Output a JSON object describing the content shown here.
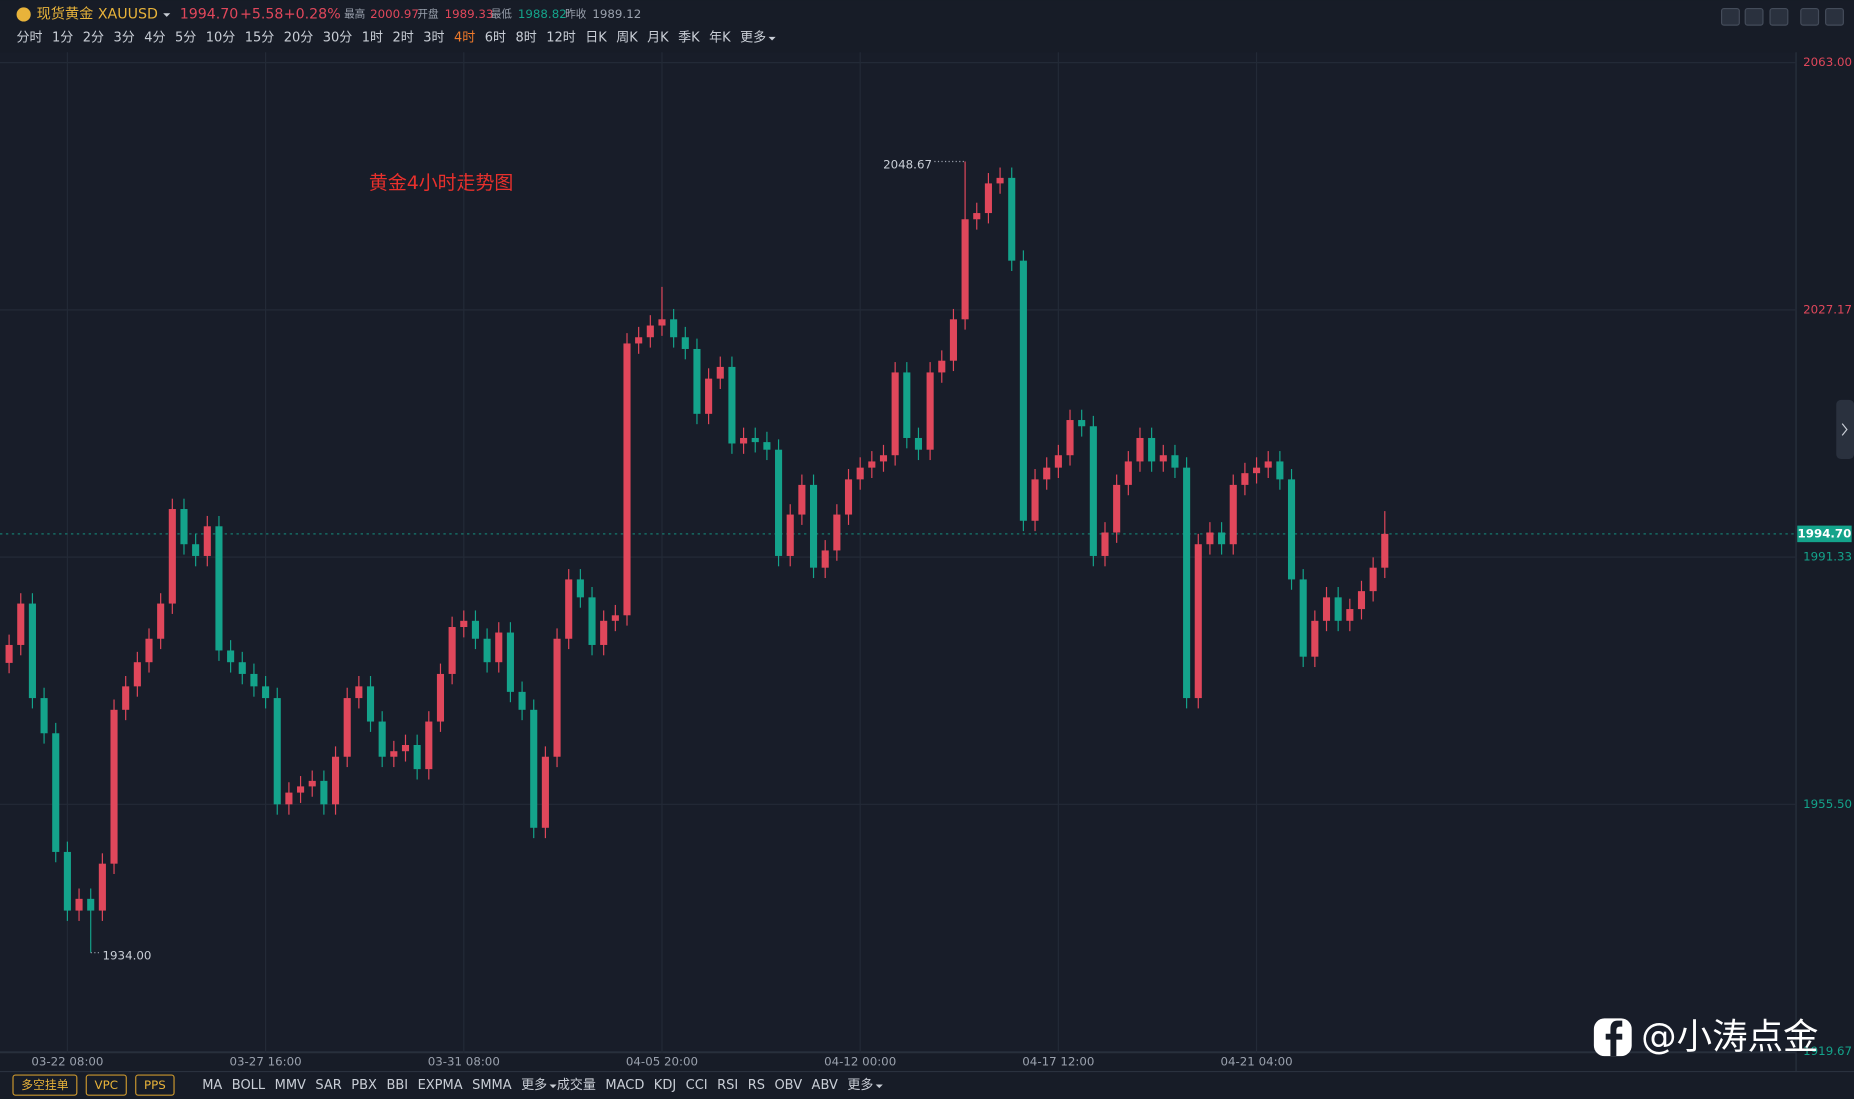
{
  "header": {
    "name": "现货黄金 XAUUSD",
    "change": "+5.58",
    "change_pct": "+0.28%",
    "high_label": "最高",
    "high": "2000.97",
    "open_label": "开盘",
    "open": "1989.33",
    "low_label": "最低",
    "low": "1988.82",
    "prev_label": "昨收",
    "prev": "1989.12"
  },
  "toolbar": {
    "timeframes": [
      "分时",
      "1分",
      "2分",
      "3分",
      "4分",
      "5分",
      "10分",
      "15分",
      "20分",
      "30分",
      "1时",
      "2时",
      "3时",
      "4时",
      "6时",
      "8时",
      "12时",
      "日K",
      "周K",
      "月K",
      "季K",
      "年K",
      "更多"
    ],
    "active": 13
  },
  "bottom": {
    "buttons": [
      "多空挂单",
      "VPC",
      "PPS"
    ],
    "main_indicators": [
      "MA",
      "BOLL",
      "MMV",
      "SAR",
      "PBX",
      "BBI",
      "EXPMA",
      "SMMA",
      "更多"
    ],
    "sub_indicators": [
      "成交量",
      "MACD",
      "KDJ",
      "CCI",
      "RSI",
      "RS",
      "OBV",
      "ABV",
      "更多"
    ]
  },
  "watermark": "@小涛点金",
  "chart_data": {
    "type": "candlestick",
    "annotation": "黄金4小时走势图",
    "up_color": "#e0475b",
    "down_color": "#14a38b",
    "grid": true,
    "last_price": {
      "value": 1994.7,
      "label": "1994.70"
    },
    "low_label": "1934.00",
    "high_index": 82,
    "low_index": 7,
    "ylim": [
      1919,
      2064.5
    ],
    "yticks": [
      {
        "value": 2063,
        "label": "2063.00"
      },
      2027.17,
      1991.33,
      {
        "value": 1955.5,
        "label": "1955.50"
      },
      1919.67
    ],
    "categories": [
      null,
      null,
      null,
      null,
      null,
      "03-22 08:00",
      null,
      null,
      null,
      null,
      null,
      null,
      null,
      null,
      null,
      null,
      null,
      null,
      null,
      null,
      null,
      null,
      "03-27 16:00",
      null,
      null,
      null,
      null,
      null,
      null,
      null,
      null,
      null,
      null,
      null,
      null,
      null,
      null,
      null,
      null,
      "03-31 08:00",
      null,
      null,
      null,
      null,
      null,
      null,
      null,
      null,
      null,
      null,
      null,
      null,
      null,
      null,
      null,
      null,
      "04-05 20:00",
      null,
      null,
      null,
      null,
      null,
      null,
      null,
      null,
      null,
      null,
      null,
      null,
      null,
      null,
      null,
      null,
      "04-12 00:00",
      null,
      null,
      null,
      null,
      null,
      null,
      null,
      null,
      null,
      null,
      null,
      null,
      null,
      null,
      null,
      null,
      "04-17 12:00",
      null,
      null,
      null,
      null,
      null,
      null,
      null,
      null,
      null,
      null,
      null,
      null,
      null,
      null,
      null,
      null,
      "04-21 04:00",
      null,
      null,
      null,
      null,
      null,
      null,
      null,
      null,
      null,
      null,
      null
    ],
    "candles": [
      [
        1976.0,
        1980.1,
        1974.5,
        1978.6
      ],
      [
        1978.6,
        1986.1,
        1977.1,
        1984.6
      ],
      [
        1984.6,
        1986.1,
        1969.4,
        1970.9
      ],
      [
        1970.9,
        1972.4,
        1964.3,
        1965.8
      ],
      [
        1965.8,
        1967.3,
        1947.1,
        1948.6
      ],
      [
        1948.6,
        1950.1,
        1938.6,
        1940.1
      ],
      [
        1940.1,
        1943.3,
        1938.6,
        1941.8
      ],
      [
        1941.8,
        1943.3,
        1934.0,
        1940.1
      ],
      [
        1940.1,
        1948.4,
        1938.6,
        1946.9
      ],
      [
        1946.9,
        1970.7,
        1945.4,
        1969.2
      ],
      [
        1969.2,
        1974.1,
        1967.7,
        1972.6
      ],
      [
        1972.6,
        1977.6,
        1971.1,
        1976.1
      ],
      [
        1976.1,
        1981.0,
        1974.6,
        1979.5
      ],
      [
        1979.5,
        1986.1,
        1978.0,
        1984.6
      ],
      [
        1984.6,
        1999.8,
        1983.1,
        1998.3
      ],
      [
        1998.3,
        1999.8,
        1991.7,
        1993.2
      ],
      [
        1993.2,
        1994.7,
        1990.0,
        1991.5
      ],
      [
        1991.5,
        1997.3,
        1990.0,
        1995.8
      ],
      [
        1995.8,
        1997.3,
        1976.3,
        1977.8
      ],
      [
        1977.8,
        1979.3,
        1974.6,
        1976.1
      ],
      [
        1976.1,
        1977.6,
        1972.9,
        1974.4
      ],
      [
        1974.4,
        1975.9,
        1971.1,
        1972.6
      ],
      [
        1972.6,
        1974.1,
        1969.4,
        1970.9
      ],
      [
        1970.9,
        1972.4,
        1954.0,
        1955.5
      ],
      [
        1955.5,
        1958.7,
        1954.0,
        1957.2
      ],
      [
        1957.2,
        1959.6,
        1955.7,
        1958.1
      ],
      [
        1958.1,
        1960.4,
        1956.6,
        1958.9
      ],
      [
        1958.9,
        1960.4,
        1954.0,
        1955.5
      ],
      [
        1955.5,
        1963.9,
        1954.0,
        1962.4
      ],
      [
        1962.4,
        1972.4,
        1960.9,
        1970.9
      ],
      [
        1970.9,
        1974.1,
        1969.4,
        1972.6
      ],
      [
        1972.6,
        1974.1,
        1966.0,
        1967.5
      ],
      [
        1967.5,
        1969.0,
        1960.9,
        1962.4
      ],
      [
        1962.4,
        1964.7,
        1960.9,
        1963.2
      ],
      [
        1963.2,
        1965.6,
        1961.7,
        1964.1
      ],
      [
        1964.1,
        1965.6,
        1959.1,
        1960.6
      ],
      [
        1960.6,
        1969.0,
        1959.1,
        1967.5
      ],
      [
        1967.5,
        1975.9,
        1966.0,
        1974.4
      ],
      [
        1974.4,
        1982.7,
        1972.9,
        1981.2
      ],
      [
        1981.2,
        1983.6,
        1979.7,
        1982.1
      ],
      [
        1982.1,
        1983.6,
        1978.0,
        1979.5
      ],
      [
        1979.5,
        1981.0,
        1974.6,
        1976.1
      ],
      [
        1976.1,
        1981.9,
        1974.6,
        1980.4
      ],
      [
        1980.4,
        1981.9,
        1970.3,
        1971.8
      ],
      [
        1971.8,
        1973.3,
        1967.7,
        1969.2
      ],
      [
        1969.2,
        1970.7,
        1950.6,
        1952.1
      ],
      [
        1952.1,
        1963.9,
        1950.6,
        1962.4
      ],
      [
        1962.4,
        1981.0,
        1960.9,
        1979.5
      ],
      [
        1979.5,
        1989.6,
        1978.0,
        1988.1
      ],
      [
        1988.1,
        1989.6,
        1984.0,
        1985.5
      ],
      [
        1985.5,
        1987.0,
        1977.1,
        1978.6
      ],
      [
        1978.6,
        1983.6,
        1977.1,
        1982.1
      ],
      [
        1982.1,
        1984.4,
        1980.6,
        1982.9
      ],
      [
        1982.9,
        2023.8,
        1981.4,
        2022.3
      ],
      [
        2022.3,
        2024.7,
        2020.8,
        2023.2
      ],
      [
        2023.2,
        2026.4,
        2021.7,
        2024.9
      ],
      [
        2024.9,
        2030.5,
        2023.4,
        2025.8
      ],
      [
        2025.8,
        2027.3,
        2021.7,
        2023.2
      ],
      [
        2023.2,
        2024.7,
        2020.0,
        2021.5
      ],
      [
        2021.5,
        2023.0,
        2010.6,
        2012.1
      ],
      [
        2012.1,
        2018.7,
        2010.6,
        2017.2
      ],
      [
        2017.2,
        2020.4,
        2015.7,
        2018.9
      ],
      [
        2018.9,
        2020.4,
        2006.3,
        2007.8
      ],
      [
        2007.8,
        2010.1,
        2006.3,
        2008.6
      ],
      [
        2008.6,
        2010.1,
        2006.5,
        2008.0
      ],
      [
        2008.0,
        2009.5,
        2005.4,
        2006.9
      ],
      [
        2006.9,
        2008.4,
        1990.0,
        1991.5
      ],
      [
        1991.5,
        1999.0,
        1990.0,
        1997.5
      ],
      [
        1997.5,
        2003.3,
        1996.0,
        2001.8
      ],
      [
        2001.8,
        2003.3,
        1988.3,
        1989.8
      ],
      [
        1989.8,
        1993.8,
        1988.3,
        1992.3
      ],
      [
        1992.3,
        1999.0,
        1990.8,
        1997.5
      ],
      [
        1997.5,
        2004.1,
        1996.0,
        2002.6
      ],
      [
        2002.6,
        2005.8,
        2001.1,
        2004.3
      ],
      [
        2004.3,
        2006.7,
        2002.8,
        2005.2
      ],
      [
        2005.2,
        2007.6,
        2003.7,
        2006.1
      ],
      [
        2006.1,
        2019.6,
        2004.6,
        2018.1
      ],
      [
        2018.1,
        2019.6,
        2007.1,
        2008.6
      ],
      [
        2008.6,
        2010.1,
        2005.4,
        2006.9
      ],
      [
        2006.9,
        2019.6,
        2005.4,
        2018.1
      ],
      [
        2018.1,
        2021.3,
        2016.6,
        2019.8
      ],
      [
        2019.8,
        2027.3,
        2018.3,
        2025.8
      ],
      [
        2025.8,
        2048.67,
        2024.3,
        2040.3
      ],
      [
        2040.3,
        2042.7,
        2038.8,
        2041.2
      ],
      [
        2041.2,
        2047.0,
        2039.7,
        2045.5
      ],
      [
        2045.5,
        2047.8,
        2044.0,
        2046.3
      ],
      [
        2046.3,
        2047.8,
        2032.8,
        2034.3
      ],
      [
        2034.3,
        2035.8,
        1995.1,
        1996.6
      ],
      [
        1996.6,
        2004.1,
        1995.1,
        2002.6
      ],
      [
        2002.6,
        2005.8,
        2001.1,
        2004.3
      ],
      [
        2004.3,
        2007.6,
        2002.8,
        2006.1
      ],
      [
        2006.1,
        2012.7,
        2004.6,
        2011.2
      ],
      [
        2011.2,
        2012.7,
        2008.8,
        2010.3
      ],
      [
        2010.3,
        2011.8,
        1990.0,
        1991.5
      ],
      [
        1991.5,
        1996.4,
        1990.0,
        1994.9
      ],
      [
        1994.9,
        2003.3,
        1993.4,
        2001.8
      ],
      [
        2001.8,
        2006.7,
        2000.3,
        2005.2
      ],
      [
        2005.2,
        2010.1,
        2003.7,
        2008.6
      ],
      [
        2008.6,
        2010.1,
        2003.7,
        2005.2
      ],
      [
        2005.2,
        2007.6,
        2003.7,
        2006.1
      ],
      [
        2006.1,
        2007.6,
        2002.8,
        2004.3
      ],
      [
        2004.3,
        2005.8,
        1969.4,
        1970.9
      ],
      [
        1970.9,
        1994.7,
        1969.4,
        1993.2
      ],
      [
        1993.2,
        1996.4,
        1991.7,
        1994.9
      ],
      [
        1994.9,
        1996.4,
        1991.7,
        1993.2
      ],
      [
        1993.2,
        2003.3,
        1991.7,
        2001.8
      ],
      [
        2001.8,
        2005.0,
        2000.3,
        2003.5
      ],
      [
        2003.5,
        2005.8,
        2002.0,
        2004.3
      ],
      [
        2004.3,
        2006.7,
        2002.8,
        2005.2
      ],
      [
        2005.2,
        2006.7,
        2001.1,
        2002.6
      ],
      [
        2002.6,
        2004.1,
        1986.6,
        1988.1
      ],
      [
        1988.1,
        1989.6,
        1975.4,
        1976.9
      ],
      [
        1976.9,
        1983.6,
        1975.4,
        1982.1
      ],
      [
        1982.1,
        1987.0,
        1980.6,
        1985.5
      ],
      [
        1985.5,
        1987.0,
        1980.6,
        1982.1
      ],
      [
        1982.1,
        1985.3,
        1980.6,
        1983.8
      ],
      [
        1983.8,
        1987.9,
        1982.3,
        1986.4
      ],
      [
        1986.4,
        1991.3,
        1984.9,
        1989.8
      ],
      [
        1989.8,
        1998.0,
        1988.3,
        1994.7
      ]
    ]
  }
}
